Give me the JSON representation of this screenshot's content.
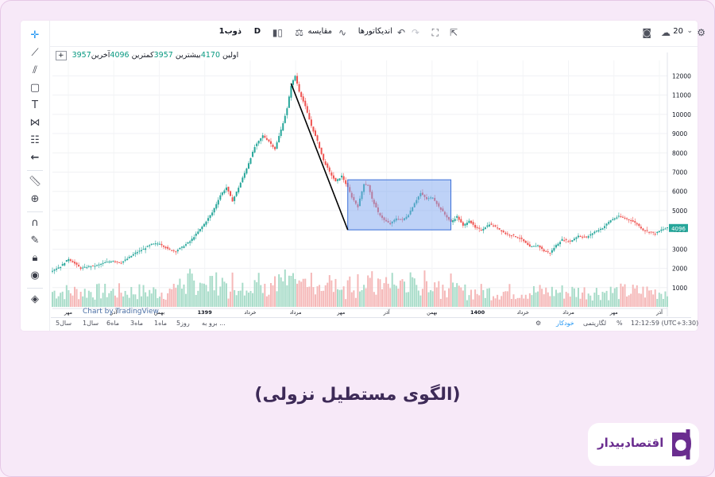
{
  "toolbar": {
    "symbol": "ذوب1",
    "interval": "D",
    "compare": "مقایسه",
    "indicators": "اندیکاتورها",
    "zoom_value": "20"
  },
  "legend": {
    "open_label": "اولین",
    "open": "3957",
    "high_label": "بیشترین",
    "high": "4170",
    "low_label": "کمترین",
    "low": "3957",
    "close_label": "آخرین",
    "close": "4096"
  },
  "watermark": "Chart by TradingView",
  "bottom_bar": {
    "ranges": [
      "5سال",
      "1سال",
      "6ماه",
      "3ماه",
      "1ماه",
      "5روز",
      "برو به ..."
    ],
    "timezone": "12:12:59 (UTC+3:30)",
    "percent": "%",
    "log": "لگاریتمی",
    "auto": "خودکار"
  },
  "caption": "(الگوی مستطیل نزولی)",
  "brand": {
    "name": "اقتصادبیدار",
    "color": "#6a2d8f"
  },
  "colors": {
    "up": "#26a69a",
    "down": "#ef5350",
    "box": "#7ea6f0"
  },
  "chart_data": {
    "type": "candlestick",
    "title": "",
    "xlabel": "",
    "ylabel": "",
    "ylim": [
      0,
      12800
    ],
    "y_ticks": [
      1000,
      2000,
      3000,
      4000,
      5000,
      6000,
      7000,
      8000,
      9000,
      10000,
      11000,
      12000
    ],
    "x_tick_labels": [
      "مهر",
      "آذر",
      "بهمن",
      "1399",
      "خرداد",
      "مرداد",
      "مهر",
      "آذر",
      "بهمن",
      "1400",
      "خرداد",
      "مرداد",
      "مهر",
      "آذر"
    ],
    "last_price": "4096",
    "price_path": [
      [
        0,
        1900
      ],
      [
        4,
        2100
      ],
      [
        8,
        2500
      ],
      [
        11,
        2250
      ],
      [
        14,
        2000
      ],
      [
        18,
        2100
      ],
      [
        22,
        2150
      ],
      [
        26,
        2300
      ],
      [
        30,
        2400
      ],
      [
        34,
        2300
      ],
      [
        37,
        2500
      ],
      [
        41,
        2800
      ],
      [
        45,
        3000
      ],
      [
        49,
        3250
      ],
      [
        53,
        3300
      ],
      [
        57,
        3000
      ],
      [
        61,
        2900
      ],
      [
        64,
        3100
      ],
      [
        68,
        3400
      ],
      [
        72,
        3900
      ],
      [
        75,
        4300
      ],
      [
        79,
        4900
      ],
      [
        83,
        5800
      ],
      [
        86,
        6200
      ],
      [
        89,
        5500
      ],
      [
        92,
        6200
      ],
      [
        96,
        7200
      ],
      [
        100,
        8300
      ],
      [
        104,
        8900
      ],
      [
        107,
        8600
      ],
      [
        110,
        8200
      ],
      [
        113,
        9200
      ],
      [
        116,
        10300
      ],
      [
        118,
        11500
      ],
      [
        120,
        12000
      ],
      [
        122,
        11200
      ],
      [
        125,
        10400
      ],
      [
        128,
        9400
      ],
      [
        131,
        8600
      ],
      [
        134,
        7600
      ],
      [
        137,
        7000
      ],
      [
        140,
        6500
      ],
      [
        143,
        6800
      ],
      [
        146,
        6200
      ],
      [
        148,
        5700
      ],
      [
        151,
        5200
      ],
      [
        154,
        6400
      ],
      [
        156,
        6300
      ],
      [
        158,
        5600
      ],
      [
        161,
        4900
      ],
      [
        164,
        4500
      ],
      [
        167,
        4300
      ],
      [
        170,
        4600
      ],
      [
        173,
        4500
      ],
      [
        176,
        4800
      ],
      [
        179,
        5400
      ],
      [
        182,
        5900
      ],
      [
        185,
        5600
      ],
      [
        188,
        5700
      ],
      [
        191,
        5200
      ],
      [
        194,
        4800
      ],
      [
        197,
        4400
      ],
      [
        200,
        4700
      ],
      [
        203,
        4200
      ],
      [
        206,
        4500
      ],
      [
        209,
        4100
      ],
      [
        212,
        4000
      ],
      [
        216,
        4300
      ],
      [
        220,
        4100
      ],
      [
        224,
        3800
      ],
      [
        228,
        3700
      ],
      [
        232,
        3500
      ],
      [
        236,
        3100
      ],
      [
        240,
        3200
      ],
      [
        243,
        2900
      ],
      [
        246,
        2800
      ],
      [
        249,
        3200
      ],
      [
        252,
        3500
      ],
      [
        256,
        3400
      ],
      [
        260,
        3700
      ],
      [
        264,
        3600
      ],
      [
        268,
        3900
      ],
      [
        272,
        4100
      ],
      [
        276,
        4500
      ],
      [
        280,
        4700
      ],
      [
        283,
        4600
      ],
      [
        286,
        4500
      ],
      [
        289,
        4300
      ],
      [
        292,
        4000
      ],
      [
        295,
        3900
      ],
      [
        298,
        3800
      ],
      [
        301,
        4000
      ],
      [
        304,
        4100
      ]
    ],
    "annotations": {
      "trendline": {
        "from": [
          118,
          11600
        ],
        "to": [
          146,
          4000
        ]
      },
      "rectangle": {
        "x0": 146,
        "x1": 197,
        "y0": 4000,
        "y1": 6600
      }
    }
  }
}
